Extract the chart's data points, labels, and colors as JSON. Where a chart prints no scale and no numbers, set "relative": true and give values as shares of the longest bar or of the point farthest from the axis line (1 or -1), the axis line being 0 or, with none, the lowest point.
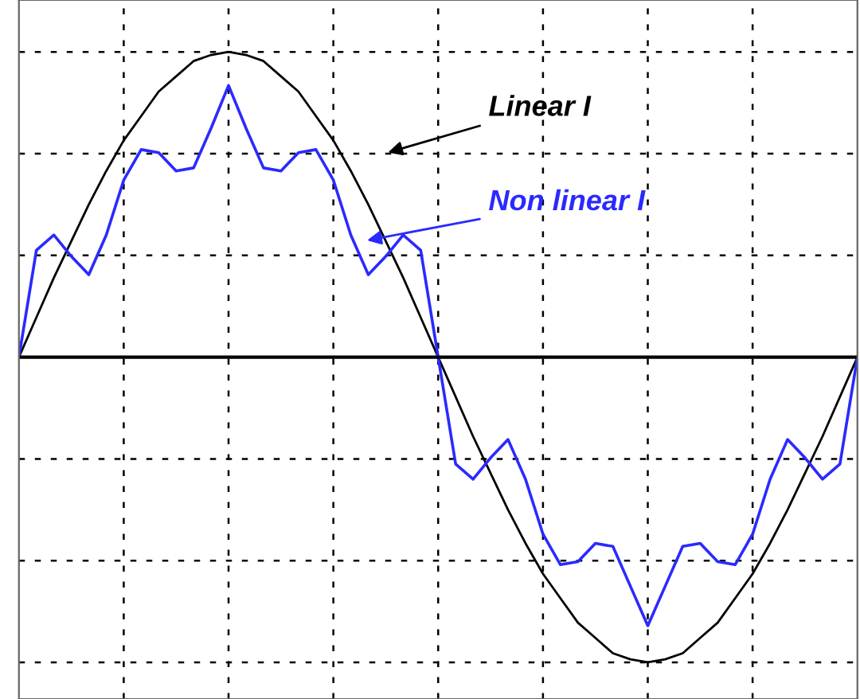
{
  "chart_data": {
    "type": "line",
    "relative": true,
    "grid": true,
    "line_style": "solid",
    "marker": "none",
    "categories": [
      null,
      null,
      null,
      null,
      null,
      null,
      null,
      null,
      null,
      null,
      null,
      null,
      null,
      null,
      null,
      null,
      null,
      null,
      null,
      null,
      null,
      null,
      null,
      null,
      null,
      null,
      null,
      null,
      null,
      null,
      null,
      null,
      null,
      null,
      null,
      null,
      null,
      null,
      null,
      null,
      null,
      null,
      null,
      null,
      null,
      null,
      null,
      null,
      null
    ],
    "series": [
      {
        "color": "#000000",
        "values": [
          0,
          0.13,
          0.26,
          0.38,
          0.5,
          0.61,
          0.71,
          0.79,
          0.87,
          0.92,
          0.97,
          0.99,
          1,
          0.99,
          0.97,
          0.92,
          0.87,
          0.79,
          0.71,
          0.61,
          0.5,
          0.38,
          0.26,
          0.13,
          0,
          -0.13,
          -0.26,
          -0.38,
          -0.5,
          -0.61,
          -0.71,
          -0.79,
          -0.87,
          -0.92,
          -0.97,
          -0.99,
          -1,
          -0.99,
          -0.97,
          -0.92,
          -0.87,
          -0.79,
          -0.71,
          -0.61,
          -0.5,
          -0.38,
          -0.26,
          -0.13,
          0
        ]
      },
      {
        "color": "#2a2aff",
        "values": [
          0,
          0.35,
          0.4,
          0.33,
          0.27,
          0.4,
          0.58,
          0.68,
          0.67,
          0.61,
          0.62,
          0.75,
          0.89,
          0.75,
          0.62,
          0.61,
          0.67,
          0.68,
          0.58,
          0.4,
          0.27,
          0.33,
          0.4,
          0.35,
          0,
          -0.35,
          -0.4,
          -0.33,
          -0.27,
          -0.4,
          -0.58,
          -0.68,
          -0.67,
          -0.61,
          -0.62,
          -0.75,
          -0.88,
          -0.75,
          -0.62,
          -0.61,
          -0.67,
          -0.68,
          -0.58,
          -0.4,
          -0.27,
          -0.33,
          -0.4,
          -0.35,
          0
        ]
      }
    ],
    "annotations": [
      "Linear I",
      "Non linear I"
    ]
  }
}
